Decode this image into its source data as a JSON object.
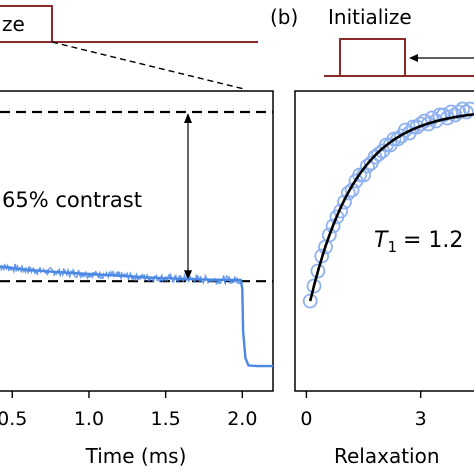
{
  "colors": {
    "trace": "#4b88e6",
    "fit": "#000000",
    "pulse": "#8b2a2a",
    "marker": "#8fb1ef"
  },
  "panel_a": {
    "pulse_label_fragment": "ze"
  },
  "panel_b": {
    "panel_letter": "(b)",
    "pulse_label": "Initialize"
  },
  "chart_data": [
    {
      "type": "line",
      "panel": "a",
      "xlabel": "Time (ms)",
      "x_ticks": [
        "0.5",
        "1.0",
        "1.5",
        "2.0"
      ],
      "x_tick_values": [
        0.5,
        1.0,
        1.5,
        2.0
      ],
      "xlim": [
        0.42,
        2.2
      ],
      "ylim": [
        0,
        1
      ],
      "annotation": "65% contrast",
      "reference_lines": {
        "upper": 0.93,
        "lower": 0.366
      },
      "series": [
        {
          "x": [
            0.42,
            0.6,
            0.8,
            1.0,
            1.2,
            1.4,
            1.6,
            1.8,
            1.99,
            2.0,
            2.005,
            2.02,
            2.04,
            2.1,
            2.2
          ],
          "y": [
            0.415,
            0.404,
            0.396,
            0.39,
            0.384,
            0.378,
            0.374,
            0.371,
            0.37,
            0.34,
            0.2,
            0.11,
            0.085,
            0.083,
            0.083
          ]
        }
      ]
    },
    {
      "type": "scatter",
      "panel": "b",
      "xlabel": "Relaxation",
      "x_ticks": [
        "0",
        "3"
      ],
      "x_tick_values": [
        0,
        3
      ],
      "xlim": [
        -0.3,
        4.4
      ],
      "ylim": [
        0,
        1
      ],
      "annotation_symbol": "T",
      "annotation_subscript": "1",
      "annotation_value": "= 1.2",
      "fit": {
        "model": "exponential_recovery",
        "y0": 0.3,
        "y_inf": 0.94,
        "tau": 1.2,
        "x_range": [
          0.1,
          4.4
        ]
      },
      "series": [
        {
          "x": [
            0.1,
            0.2,
            0.3,
            0.4,
            0.5,
            0.6,
            0.7,
            0.8,
            0.9,
            1.0,
            1.1,
            1.2,
            1.3,
            1.4,
            1.5,
            1.6,
            1.7,
            1.8,
            1.9,
            2.0,
            2.1,
            2.2,
            2.3,
            2.4,
            2.5,
            2.6,
            2.7,
            2.8,
            2.9,
            3.0,
            3.1,
            3.2,
            3.3,
            3.4,
            3.5,
            3.6,
            3.7,
            3.8,
            3.9,
            4.0,
            4.1,
            4.2,
            4.3
          ],
          "y": [
            0.3,
            0.35,
            0.4,
            0.45,
            0.48,
            0.52,
            0.55,
            0.58,
            0.6,
            0.63,
            0.66,
            0.67,
            0.7,
            0.72,
            0.72,
            0.75,
            0.76,
            0.78,
            0.79,
            0.8,
            0.82,
            0.82,
            0.84,
            0.84,
            0.85,
            0.87,
            0.86,
            0.88,
            0.88,
            0.89,
            0.9,
            0.89,
            0.91,
            0.9,
            0.92,
            0.92,
            0.91,
            0.93,
            0.92,
            0.93,
            0.94,
            0.93,
            0.94
          ]
        }
      ]
    }
  ]
}
